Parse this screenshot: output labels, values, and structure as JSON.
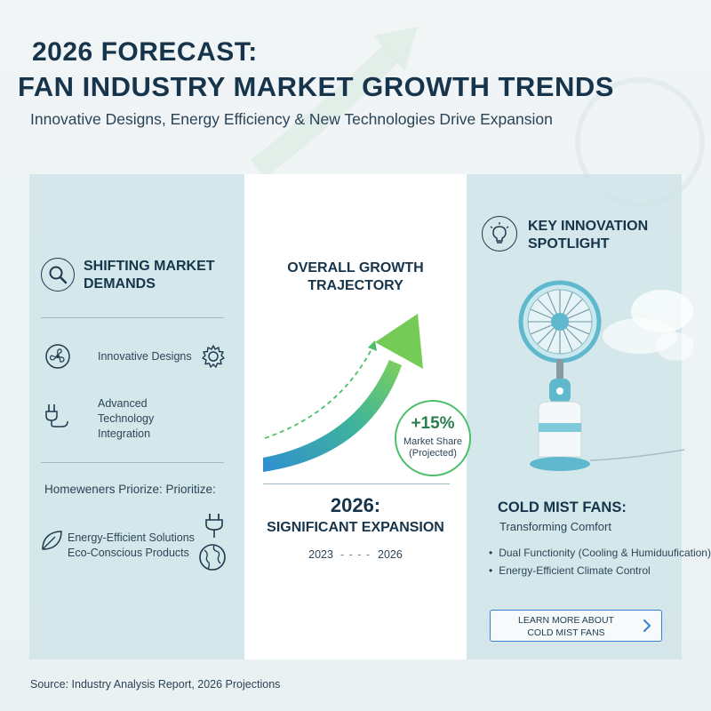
{
  "header": {
    "title_line1": "2026 FORECAST:",
    "title_line2": "FAN INDUSTRY MARKET GROWTH TRENDS",
    "subtitle": "Innovative Designs, Energy Efficiency & New Technologies Drive Expansion"
  },
  "left_panel": {
    "heading": "SHIFTING MARKET DEMANDS",
    "items": [
      {
        "label": "Innovative Designs",
        "icon": "fan-icon",
        "side_icon": "gear-icon"
      },
      {
        "label": "Advanced Technology Integration",
        "icon": "plug-icon"
      }
    ],
    "homeowners_text": "Homeweners Priorize: Prioritize:",
    "energy_text": "Energy-Efficient Solutions Eco-Conscious Products",
    "energy_icons": [
      "leaf-icon",
      "plug-icon",
      "globe-icon"
    ]
  },
  "middle_panel": {
    "heading": "OVERALL GROWTH TRAJECTORY",
    "badge_value": "+15%",
    "badge_line1": "Market Share",
    "badge_line2": "(Projected)",
    "year_big": "2026:",
    "expansion": "SIGNIFICANT EXPANSION",
    "year_start": "2023",
    "year_end": "2026"
  },
  "right_panel": {
    "heading": "KEY INNOVATION SPOTLIGHT",
    "product_title": "COLD MIST FANS:",
    "product_subtitle": "Transforming Comfort",
    "bullets": [
      "Dual Functionity (Cooling & Humiduufication)",
      "Energy-Efficient Climate Control"
    ],
    "button_line1": "LEARN MORE ABOUT",
    "button_line2": "COLD MIST FANS"
  },
  "footer": {
    "source": "Source: Industry Analysis Report, 2026 Projections"
  },
  "colors": {
    "navy": "#16344b",
    "panel_teal": "#cbe2e6",
    "growth_green": "#6cc84e",
    "growth_blue": "#2f8fd1",
    "button_border": "#3a7fd0"
  }
}
